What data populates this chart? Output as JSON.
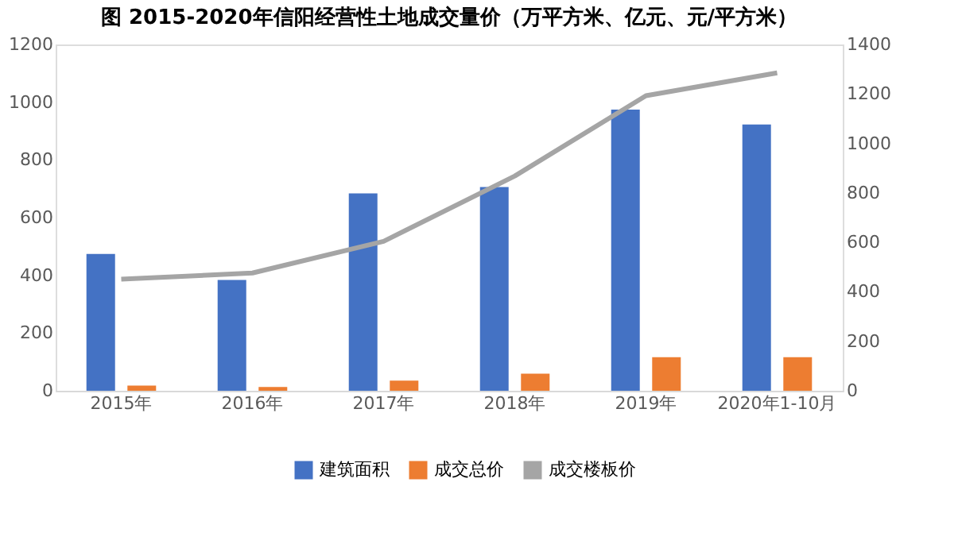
{
  "chart_data": {
    "type": "bar",
    "title": "图 2015-2020年信阳经营性土地成交量价（万平方米、亿元、元/平方米）",
    "categories": [
      "2015年",
      "2016年",
      "2017年",
      "2018年",
      "2019年",
      "2020年1-10月"
    ],
    "series": [
      {
        "name": "建筑面积",
        "color": "#4472c4",
        "values": [
          474,
          384,
          684,
          706,
          974,
          923
        ]
      },
      {
        "name": "成交总价",
        "color": "#ed7d31",
        "values": [
          18,
          13,
          35,
          59,
          116,
          116
        ]
      },
      {
        "name": "成交楼板价",
        "color": "#a5a5a5",
        "type": "line",
        "axis": "y2",
        "values": [
          451,
          476,
          604,
          868,
          1193,
          1285
        ]
      }
    ],
    "ylim": [
      0,
      1200
    ],
    "yticks": [
      0,
      200,
      400,
      600,
      800,
      1000,
      1200
    ],
    "y2lim": [
      0,
      1400
    ],
    "y2ticks": [
      0,
      200,
      400,
      600,
      800,
      1000,
      1200,
      1400
    ],
    "grid": false,
    "legend": "bottom",
    "marker": "none",
    "line_style": "solid"
  }
}
